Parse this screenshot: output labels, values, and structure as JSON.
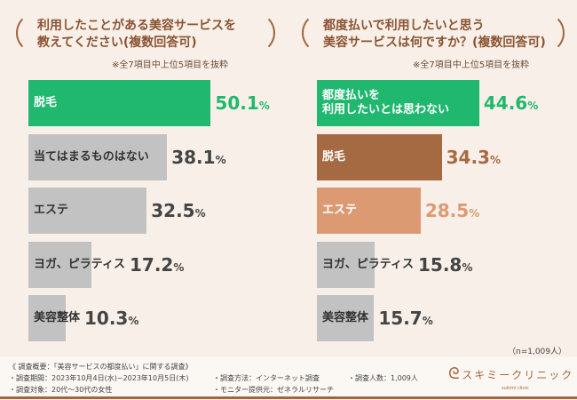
{
  "left": {
    "title_line1": "利用したことがある美容サービスを",
    "title_line2": "教えてください(複数回答可)",
    "note": "※全7項目中上位5項目を抜粋"
  },
  "right": {
    "title_line1": "都度払いで利用したいと思う",
    "title_line2": "美容サービスは何ですか？(複数回答可)",
    "note": "※全7項目中上位5項目を抜粋"
  },
  "chart_data": [
    {
      "type": "bar",
      "orientation": "horizontal",
      "categories": [
        "脱毛",
        "当てはまるものはない",
        "エステ",
        "ヨガ、ピラティス",
        "美容整体"
      ],
      "values": [
        50.1,
        38.1,
        32.5,
        17.2,
        10.3
      ],
      "unit": "%",
      "colors": [
        "#1fb86e",
        "#c2c2c2",
        "#c2c2c2",
        "#c2c2c2",
        "#c2c2c2"
      ],
      "value_colors": [
        "#1fb86e",
        "#444444",
        "#444444",
        "#444444",
        "#444444"
      ]
    },
    {
      "type": "bar",
      "orientation": "horizontal",
      "categories": [
        "都度払いを\n利用したいとは思わない",
        "脱毛",
        "エステ",
        "ヨガ、ピラティス",
        "美容整体"
      ],
      "values": [
        44.6,
        34.3,
        28.5,
        15.8,
        15.7
      ],
      "unit": "%",
      "colors": [
        "#1fb86e",
        "#a66a43",
        "#dc9a73",
        "#c2c2c2",
        "#c2c2c2"
      ],
      "value_colors": [
        "#1fb86e",
        "#a66a43",
        "#dc9a73",
        "#444444",
        "#444444"
      ]
    }
  ],
  "sample": "（n=1,009人）",
  "footer": {
    "overview": "《 調査概要：「美容サービスの都度払い」に関する調査》",
    "period": "・調査期間：2023年10月4日(水)~2023年10月5日(木)",
    "method": "・調査方法：インターネット調査",
    "count": "・調査人数：1,009人",
    "target": "・調査対象：20代～30代の女性",
    "provider": "・モニター提供元：ゼネラルリサーチ",
    "logo": "スキミークリニック",
    "logo_sub": "sukimi clinic"
  }
}
